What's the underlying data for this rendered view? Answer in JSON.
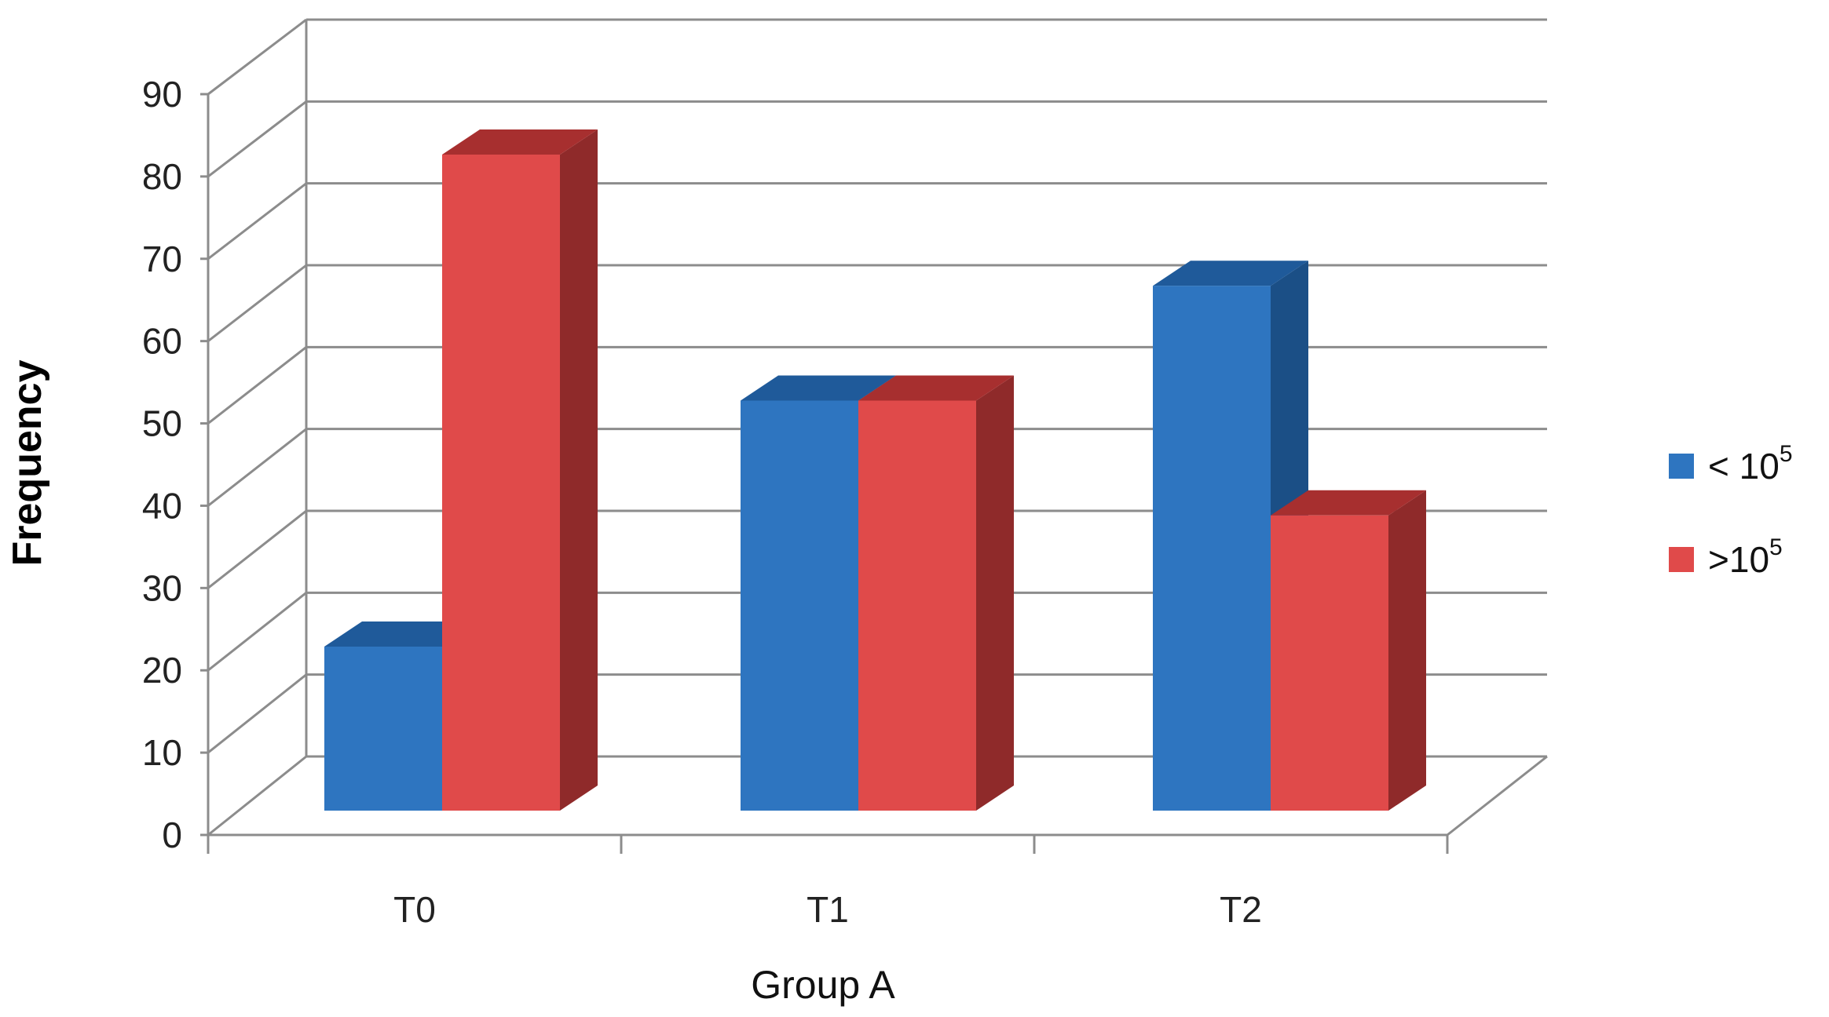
{
  "chart_data": {
    "type": "bar",
    "style": "3d-clustered-column",
    "categories": [
      "T0",
      "T1",
      "T2"
    ],
    "series": [
      {
        "name": "< 10",
        "name_superscript": "5",
        "values": [
          20,
          50,
          64
        ],
        "color": "#2e75c0",
        "color_top": "#1f5a9a",
        "color_side": "#1b4f86"
      },
      {
        "name": ">10",
        "name_superscript": "5",
        "values": [
          80,
          50,
          36
        ],
        "color": "#e04a4a",
        "color_top": "#a72f2f",
        "color_side": "#8f2a2a"
      }
    ],
    "xlabel": "Group A",
    "ylabel": "Frequency",
    "ylim": [
      0,
      90
    ],
    "yticks": [
      "0",
      "10",
      "20",
      "30",
      "40",
      "50",
      "60",
      "70",
      "80",
      "90"
    ],
    "grid": true,
    "legend_position": "right"
  }
}
